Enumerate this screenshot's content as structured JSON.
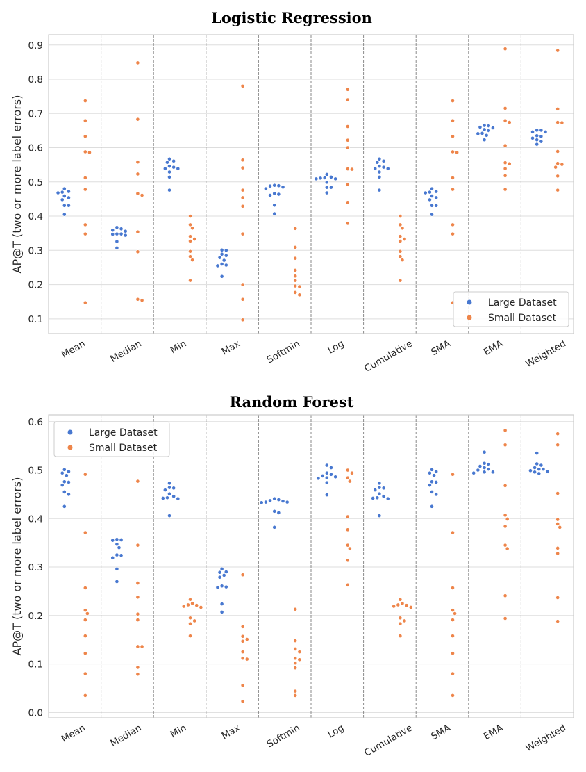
{
  "chart_data": [
    {
      "type": "scatter",
      "subtype": "swarm",
      "title": "Logistic Regression",
      "xlabel": "",
      "ylabel": "AP@T (two or more label errors)",
      "ylim": [
        0.057,
        0.93
      ],
      "yticks": [
        "0.1",
        "0.2",
        "0.3",
        "0.4",
        "0.5",
        "0.6",
        "0.7",
        "0.8",
        "0.9"
      ],
      "grid": true,
      "legend_position": "lower-right",
      "categories": [
        "Mean",
        "Median",
        "Min",
        "Max",
        "Softmin",
        "Log",
        "Cumulative",
        "SMA",
        "EMA",
        "Weighted"
      ],
      "series": [
        {
          "name": "Large Dataset",
          "color": "#4878d0",
          "values": [
            [
              0.48,
              0.472,
              0.47,
              0.468,
              0.459,
              0.454,
              0.448,
              0.431,
              0.431,
              0.405
            ],
            [
              0.367,
              0.363,
              0.359,
              0.356,
              0.348,
              0.348,
              0.347,
              0.344,
              0.326,
              0.307
            ],
            [
              0.567,
              0.561,
              0.557,
              0.546,
              0.543,
              0.539,
              0.539,
              0.529,
              0.514,
              0.476
            ],
            [
              0.301,
              0.3,
              0.289,
              0.285,
              0.279,
              0.271,
              0.26,
              0.257,
              0.255,
              0.224
            ],
            [
              0.49,
              0.489,
              0.488,
              0.485,
              0.48,
              0.466,
              0.464,
              0.461,
              0.432,
              0.407
            ],
            [
              0.522,
              0.514,
              0.512,
              0.511,
              0.509,
              0.509,
              0.499,
              0.484,
              0.484,
              0.468
            ],
            [
              0.567,
              0.561,
              0.557,
              0.546,
              0.543,
              0.539,
              0.539,
              0.529,
              0.514,
              0.476
            ],
            [
              0.48,
              0.472,
              0.47,
              0.468,
              0.459,
              0.454,
              0.448,
              0.431,
              0.431,
              0.405
            ],
            [
              0.665,
              0.664,
              0.66,
              0.658,
              0.653,
              0.65,
              0.642,
              0.641,
              0.636,
              0.623
            ],
            [
              0.651,
              0.651,
              0.646,
              0.646,
              0.635,
              0.633,
              0.628,
              0.623,
              0.618,
              0.61
            ]
          ]
        },
        {
          "name": "Small Dataset",
          "color": "#ee854a",
          "values": [
            [
              0.737,
              0.679,
              0.633,
              0.588,
              0.586,
              0.512,
              0.478,
              0.375,
              0.348,
              0.147
            ],
            [
              0.848,
              0.683,
              0.558,
              0.523,
              0.466,
              0.461,
              0.354,
              0.296,
              0.157,
              0.154
            ],
            [
              0.4,
              0.375,
              0.365,
              0.341,
              0.333,
              0.327,
              0.297,
              0.282,
              0.272,
              0.212
            ],
            [
              0.78,
              0.564,
              0.541,
              0.476,
              0.454,
              0.429,
              0.348,
              0.2,
              0.157,
              0.097
            ],
            [
              0.364,
              0.309,
              0.277,
              0.242,
              0.225,
              0.212,
              0.196,
              0.194,
              0.177,
              0.17
            ],
            [
              0.77,
              0.74,
              0.662,
              0.622,
              0.6,
              0.538,
              0.537,
              0.492,
              0.44,
              0.379
            ],
            [
              0.4,
              0.375,
              0.365,
              0.341,
              0.333,
              0.327,
              0.297,
              0.282,
              0.272,
              0.212
            ],
            [
              0.737,
              0.679,
              0.633,
              0.588,
              0.586,
              0.512,
              0.478,
              0.375,
              0.348,
              0.147
            ],
            [
              0.889,
              0.715,
              0.679,
              0.674,
              0.606,
              0.556,
              0.553,
              0.539,
              0.518,
              0.478
            ],
            [
              0.884,
              0.713,
              0.674,
              0.673,
              0.589,
              0.554,
              0.551,
              0.543,
              0.517,
              0.476
            ]
          ]
        }
      ]
    },
    {
      "type": "scatter",
      "subtype": "swarm",
      "title": "Random Forest",
      "xlabel": "",
      "ylabel": "AP@T (two or more label errors)",
      "ylim": [
        -0.011,
        0.614
      ],
      "yticks": [
        "0.0",
        "0.1",
        "0.2",
        "0.3",
        "0.4",
        "0.5",
        "0.6"
      ],
      "grid": true,
      "legend_position": "upper-left",
      "categories": [
        "Mean",
        "Median",
        "Min",
        "Max",
        "Softmin",
        "Log",
        "Cumulative",
        "SMA",
        "EMA",
        "Weighted"
      ],
      "series": [
        {
          "name": "Large Dataset",
          "color": "#4878d0",
          "values": [
            [
              0.501,
              0.497,
              0.494,
              0.489,
              0.476,
              0.475,
              0.469,
              0.455,
              0.45,
              0.425
            ],
            [
              0.357,
              0.356,
              0.355,
              0.347,
              0.34,
              0.325,
              0.324,
              0.319,
              0.296,
              0.27
            ],
            [
              0.473,
              0.464,
              0.463,
              0.459,
              0.451,
              0.446,
              0.443,
              0.442,
              0.441,
              0.406
            ],
            [
              0.296,
              0.29,
              0.289,
              0.283,
              0.279,
              0.261,
              0.259,
              0.258,
              0.224,
              0.207
            ],
            [
              0.441,
              0.439,
              0.437,
              0.436,
              0.434,
              0.434,
              0.433,
              0.415,
              0.412,
              0.382
            ],
            [
              0.51,
              0.505,
              0.494,
              0.491,
              0.488,
              0.486,
              0.484,
              0.483,
              0.474,
              0.449
            ],
            [
              0.473,
              0.464,
              0.463,
              0.459,
              0.451,
              0.446,
              0.443,
              0.442,
              0.441,
              0.406
            ],
            [
              0.501,
              0.497,
              0.494,
              0.489,
              0.476,
              0.475,
              0.469,
              0.455,
              0.45,
              0.425
            ],
            [
              0.537,
              0.514,
              0.512,
              0.508,
              0.505,
              0.502,
              0.5,
              0.496,
              0.496,
              0.494
            ],
            [
              0.535,
              0.513,
              0.51,
              0.505,
              0.502,
              0.502,
              0.499,
              0.497,
              0.496,
              0.493
            ]
          ]
        },
        {
          "name": "Small Dataset",
          "color": "#ee854a",
          "values": [
            [
              0.491,
              0.371,
              0.257,
              0.211,
              0.204,
              0.191,
              0.158,
              0.122,
              0.08,
              0.035
            ],
            [
              0.477,
              0.345,
              0.267,
              0.238,
              0.203,
              0.191,
              0.136,
              0.136,
              0.093,
              0.079
            ],
            [
              0.233,
              0.225,
              0.222,
              0.221,
              0.219,
              0.217,
              0.195,
              0.189,
              0.183,
              0.158
            ],
            [
              0.284,
              0.177,
              0.157,
              0.151,
              0.147,
              0.125,
              0.112,
              0.11,
              0.056,
              0.023
            ],
            [
              0.213,
              0.148,
              0.131,
              0.125,
              0.112,
              0.109,
              0.102,
              0.092,
              0.044,
              0.035
            ],
            [
              0.5,
              0.494,
              0.484,
              0.477,
              0.404,
              0.377,
              0.345,
              0.338,
              0.314,
              0.263
            ],
            [
              0.233,
              0.225,
              0.222,
              0.221,
              0.219,
              0.217,
              0.195,
              0.189,
              0.183,
              0.158
            ],
            [
              0.491,
              0.371,
              0.257,
              0.211,
              0.204,
              0.191,
              0.158,
              0.122,
              0.08,
              0.035
            ],
            [
              0.582,
              0.552,
              0.468,
              0.407,
              0.399,
              0.384,
              0.345,
              0.338,
              0.241,
              0.194
            ],
            [
              0.575,
              0.552,
              0.452,
              0.398,
              0.389,
              0.382,
              0.339,
              0.328,
              0.237,
              0.188
            ]
          ]
        }
      ]
    }
  ]
}
